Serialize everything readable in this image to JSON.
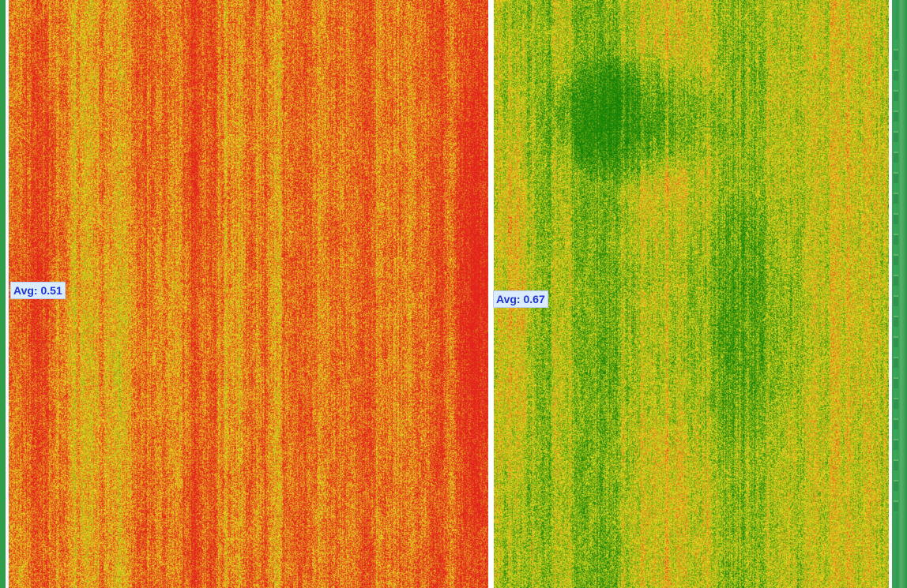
{
  "plots": [
    {
      "avg_text": "Avg: 0.51",
      "avg_value": 0.51,
      "dominant_colors": [
        "#e8261a",
        "#f3a41d",
        "#e8dc1f",
        "#9bcb2a"
      ]
    },
    {
      "avg_text": "Avg: 0.67",
      "avg_value": 0.67,
      "dominant_colors": [
        "#1f8a0a",
        "#6fb91a",
        "#e1dc1e",
        "#ef6a1a"
      ]
    }
  ],
  "colors": {
    "low": "#e3231c",
    "mid": "#e8de20",
    "high": "#178307",
    "boundary": "#ffffff",
    "label_text": "#1d35d8",
    "label_bg": "#dcecff"
  }
}
